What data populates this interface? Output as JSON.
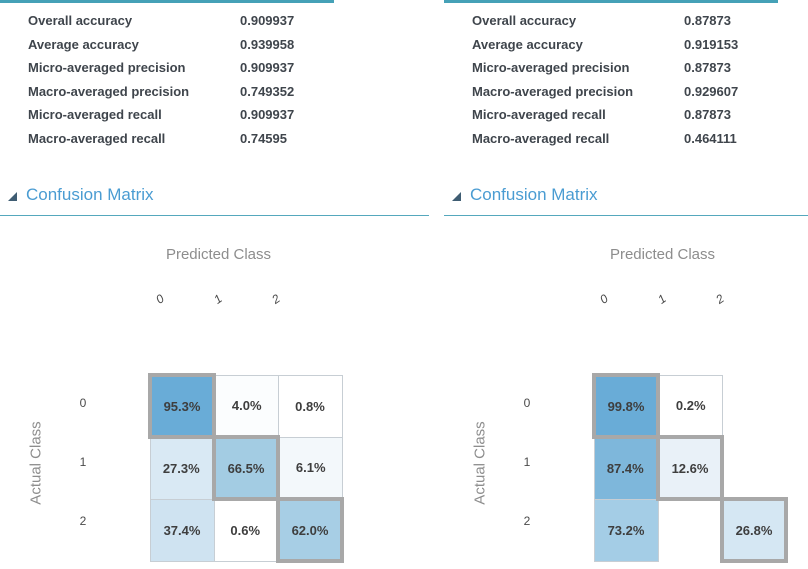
{
  "colors": {
    "accent_teal": "#45a1b7",
    "header_blue": "#4a9cd2",
    "diag_border": "#a8a8a8",
    "cell_border": "#c7ced4",
    "metric_text": "#3f454c",
    "axis_gray": "#8d8d8d"
  },
  "panels": [
    {
      "metrics": [
        {
          "label": "Overall accuracy",
          "value": "0.909937"
        },
        {
          "label": "Average accuracy",
          "value": "0.939958"
        },
        {
          "label": "Micro-averaged precision",
          "value": "0.909937"
        },
        {
          "label": "Macro-averaged precision",
          "value": "0.749352"
        },
        {
          "label": "Micro-averaged recall",
          "value": "0.909937"
        },
        {
          "label": "Macro-averaged recall",
          "value": "0.74595"
        }
      ],
      "section_title": "Confusion Matrix",
      "matrix": {
        "x_title": "Predicted Class",
        "y_title": "Actual Class",
        "col_labels": [
          "0",
          "1",
          "2"
        ],
        "row_labels": [
          "0",
          "1",
          "2"
        ],
        "cells": [
          [
            {
              "text": "95.3%",
              "bg": "#69acd7"
            },
            {
              "text": "4.0%",
              "bg": "#fbfdfe"
            },
            {
              "text": "0.8%",
              "bg": "#ffffff"
            }
          ],
          [
            {
              "text": "27.3%",
              "bg": "#d9e9f4"
            },
            {
              "text": "66.5%",
              "bg": "#a3cce3"
            },
            {
              "text": "6.1%",
              "bg": "#f3f8fb"
            }
          ],
          [
            {
              "text": "37.4%",
              "bg": "#cfe3f1"
            },
            {
              "text": "0.6%",
              "bg": "#ffffff"
            },
            {
              "text": "62.0%",
              "bg": "#a7cee5"
            }
          ]
        ]
      }
    },
    {
      "metrics": [
        {
          "label": "Overall accuracy",
          "value": "0.87873"
        },
        {
          "label": "Average accuracy",
          "value": "0.919153"
        },
        {
          "label": "Micro-averaged precision",
          "value": "0.87873"
        },
        {
          "label": "Macro-averaged precision",
          "value": "0.929607"
        },
        {
          "label": "Micro-averaged recall",
          "value": "0.87873"
        },
        {
          "label": "Macro-averaged recall",
          "value": "0.464111"
        }
      ],
      "section_title": "Confusion Matrix",
      "matrix": {
        "x_title": "Predicted Class",
        "y_title": "Actual Class",
        "col_labels": [
          "0",
          "1",
          "2"
        ],
        "row_labels": [
          "0",
          "1",
          "2"
        ],
        "cells": [
          [
            {
              "text": "99.8%",
              "bg": "#69acd7"
            },
            {
              "text": "0.2%",
              "bg": "#ffffff"
            },
            null
          ],
          [
            {
              "text": "87.4%",
              "bg": "#7eb7db"
            },
            {
              "text": "12.6%",
              "bg": "#e9f1f8"
            },
            null
          ],
          [
            {
              "text": "73.2%",
              "bg": "#a4cde6"
            },
            null,
            {
              "text": "26.8%",
              "bg": "#d5e7f3"
            }
          ]
        ]
      }
    }
  ],
  "chart_data": [
    {
      "type": "heatmap",
      "title": "Confusion Matrix (left)",
      "xlabel": "Predicted Class",
      "ylabel": "Actual Class",
      "x": [
        "0",
        "1",
        "2"
      ],
      "y": [
        "0",
        "1",
        "2"
      ],
      "values_percent": [
        [
          95.3,
          4.0,
          0.8
        ],
        [
          27.3,
          66.5,
          6.1
        ],
        [
          37.4,
          0.6,
          62.0
        ]
      ]
    },
    {
      "type": "heatmap",
      "title": "Confusion Matrix (right)",
      "xlabel": "Predicted Class",
      "ylabel": "Actual Class",
      "x": [
        "0",
        "1",
        "2"
      ],
      "y": [
        "0",
        "1",
        "2"
      ],
      "values_percent": [
        [
          99.8,
          0.2,
          null
        ],
        [
          87.4,
          12.6,
          null
        ],
        [
          73.2,
          null,
          26.8
        ]
      ]
    }
  ]
}
